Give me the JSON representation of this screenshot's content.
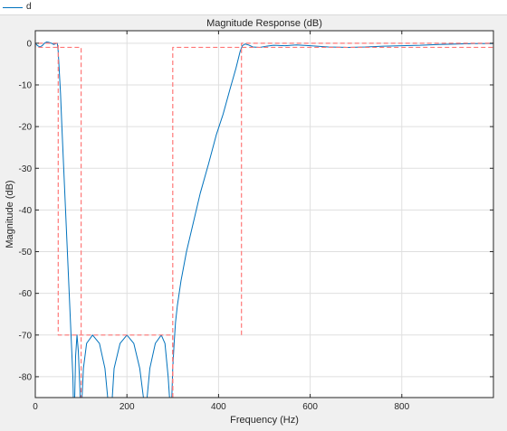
{
  "legend": {
    "entries": [
      {
        "name": "d",
        "color": "#0072bd"
      }
    ]
  },
  "chart_data": {
    "type": "line",
    "title": "Magnitude Response (dB)",
    "xlabel": "Frequency (Hz)",
    "ylabel": "Magnitude (dB)",
    "xlim": [
      0,
      1000
    ],
    "ylim": [
      -85,
      3
    ],
    "xticks": [
      0,
      200,
      400,
      600,
      800
    ],
    "xtick_labels": [
      "0",
      "200",
      "400",
      "600",
      "800"
    ],
    "yticks": [
      0,
      -10,
      -20,
      -30,
      -40,
      -50,
      -60,
      -70,
      -80
    ],
    "ytick_labels": [
      "0",
      "-10",
      "-20",
      "-30",
      "-40",
      "-50",
      "-60",
      "-70",
      "-80"
    ],
    "grid": true,
    "series": [
      {
        "name": "d",
        "color": "#0072bd",
        "style": "solid",
        "points": [
          [
            0,
            0
          ],
          [
            5,
            -0.6
          ],
          [
            10,
            -0.9
          ],
          [
            15,
            -0.6
          ],
          [
            20,
            0
          ],
          [
            25,
            0.3
          ],
          [
            30,
            0.2
          ],
          [
            35,
            0
          ],
          [
            40,
            -0.3
          ],
          [
            45,
            -0.1
          ],
          [
            48,
            0
          ],
          [
            50,
            -2
          ],
          [
            52,
            -6
          ],
          [
            55,
            -12
          ],
          [
            58,
            -20
          ],
          [
            62,
            -30
          ],
          [
            66,
            -40
          ],
          [
            70,
            -50
          ],
          [
            74,
            -60
          ],
          [
            78,
            -70
          ],
          [
            82,
            -80
          ],
          [
            83,
            -85
          ],
          null,
          [
            86,
            -85
          ],
          [
            88,
            -75
          ],
          [
            91,
            -70
          ],
          [
            94,
            -74
          ],
          [
            97,
            -82
          ],
          [
            98,
            -85
          ],
          null,
          [
            102,
            -85
          ],
          [
            105,
            -78
          ],
          [
            112,
            -72
          ],
          [
            125,
            -70
          ],
          [
            140,
            -72
          ],
          [
            152,
            -78
          ],
          [
            158,
            -85
          ],
          null,
          [
            168,
            -85
          ],
          [
            172,
            -78
          ],
          [
            185,
            -72
          ],
          [
            200,
            -70
          ],
          [
            215,
            -72
          ],
          [
            228,
            -78
          ],
          [
            236,
            -85
          ],
          null,
          [
            244,
            -85
          ],
          [
            250,
            -78
          ],
          [
            262,
            -72
          ],
          [
            275,
            -70
          ],
          [
            283,
            -72
          ],
          [
            290,
            -80
          ],
          [
            293,
            -85
          ],
          null,
          [
            298,
            -85
          ],
          [
            300,
            -78
          ],
          [
            303,
            -72
          ],
          [
            306,
            -67
          ],
          [
            310,
            -63
          ],
          [
            318,
            -57
          ],
          [
            330,
            -50
          ],
          [
            345,
            -43
          ],
          [
            360,
            -36
          ],
          [
            378,
            -29
          ],
          [
            395,
            -22
          ],
          [
            410,
            -17
          ],
          [
            425,
            -11
          ],
          [
            438,
            -6
          ],
          [
            447,
            -2
          ],
          [
            452,
            -0.6
          ],
          [
            458,
            -0.2
          ],
          [
            465,
            -0.4
          ],
          [
            475,
            -0.9
          ],
          [
            490,
            -1.0
          ],
          [
            505,
            -0.7
          ],
          [
            520,
            -0.5
          ],
          [
            545,
            -0.6
          ],
          [
            570,
            -0.4
          ],
          [
            600,
            -0.6
          ],
          [
            640,
            -0.9
          ],
          [
            680,
            -1.0
          ],
          [
            720,
            -0.9
          ],
          [
            760,
            -0.7
          ],
          [
            800,
            -0.6
          ],
          [
            840,
            -0.5
          ],
          [
            880,
            -0.3
          ],
          [
            920,
            -0.2
          ],
          [
            960,
            -0.1
          ],
          [
            1000,
            -0.1
          ]
        ]
      },
      {
        "name": "",
        "color": "#ff7777",
        "style": "dashed",
        "points": [
          [
            0,
            -1
          ],
          [
            0,
            0
          ],
          [
            50,
            0
          ],
          [
            50,
            -70
          ],
          [
            300,
            -70
          ],
          [
            300,
            -85
          ]
        ]
      },
      {
        "name": "",
        "color": "#ff7777",
        "style": "dashed",
        "points": [
          [
            0,
            0
          ],
          [
            0,
            -1
          ],
          [
            100,
            -1
          ],
          [
            100,
            -85
          ]
        ]
      },
      {
        "name": "",
        "color": "#ff7777",
        "style": "dashed",
        "points": [
          [
            300,
            -85
          ],
          [
            300,
            -1
          ],
          [
            1000,
            -1
          ]
        ]
      },
      {
        "name": "",
        "color": "#ff7777",
        "style": "dashed",
        "points": [
          [
            450,
            -70
          ],
          [
            450,
            0
          ],
          [
            1000,
            0
          ]
        ]
      }
    ]
  }
}
